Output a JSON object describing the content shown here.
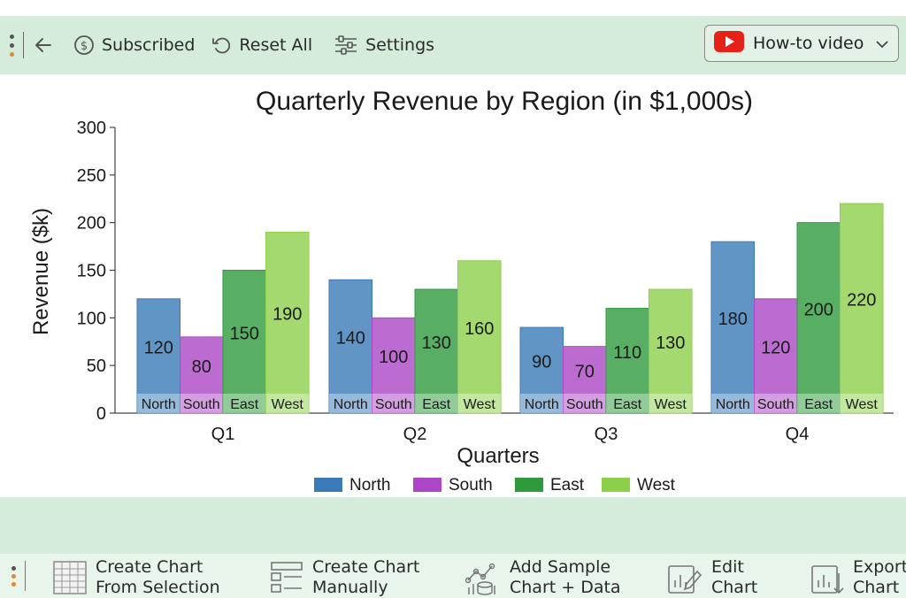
{
  "toolbar": {
    "subscribed_label": "Subscribed",
    "reset_label": "Reset All",
    "settings_label": "Settings",
    "video_select_value": "How-to video"
  },
  "bottom_toolbar": {
    "items": [
      {
        "line1": "Create Chart",
        "line2": "From Selection",
        "icon": "table-grid-icon"
      },
      {
        "line1": "Create Chart",
        "line2": "Manually",
        "icon": "form-list-icon"
      },
      {
        "line1": "Add Sample",
        "line2": "Chart + Data",
        "icon": "sample-data-icon"
      },
      {
        "line1": "Edit",
        "line2": "Chart",
        "icon": "edit-chart-icon"
      },
      {
        "line1": "Export",
        "line2": "Chart",
        "icon": "export-chart-icon"
      }
    ]
  },
  "colors": {
    "toolbar_bg": "#d5ecdb",
    "accent_dot": "#e6872c",
    "youtube_red": "#e62117",
    "North": "#3a7ab8",
    "South": "#ab47c4",
    "East": "#2e9a3c",
    "West": "#8ccf4a"
  },
  "chart_data": {
    "type": "bar",
    "title": "Quarterly Revenue by Region (in $1,000s)",
    "xlabel": "Quarters",
    "ylabel": "Revenue ($k)",
    "categories": [
      "Q1",
      "Q2",
      "Q3",
      "Q4"
    ],
    "ylim": [
      0,
      300
    ],
    "yticks": [
      0,
      50,
      100,
      150,
      200,
      250,
      300
    ],
    "grid": false,
    "legend_position": "bottom",
    "series": [
      {
        "name": "North",
        "values": [
          120,
          140,
          90,
          180
        ]
      },
      {
        "name": "South",
        "values": [
          80,
          100,
          70,
          120
        ]
      },
      {
        "name": "East",
        "values": [
          150,
          130,
          110,
          200
        ]
      },
      {
        "name": "West",
        "values": [
          190,
          160,
          130,
          220
        ]
      }
    ]
  }
}
